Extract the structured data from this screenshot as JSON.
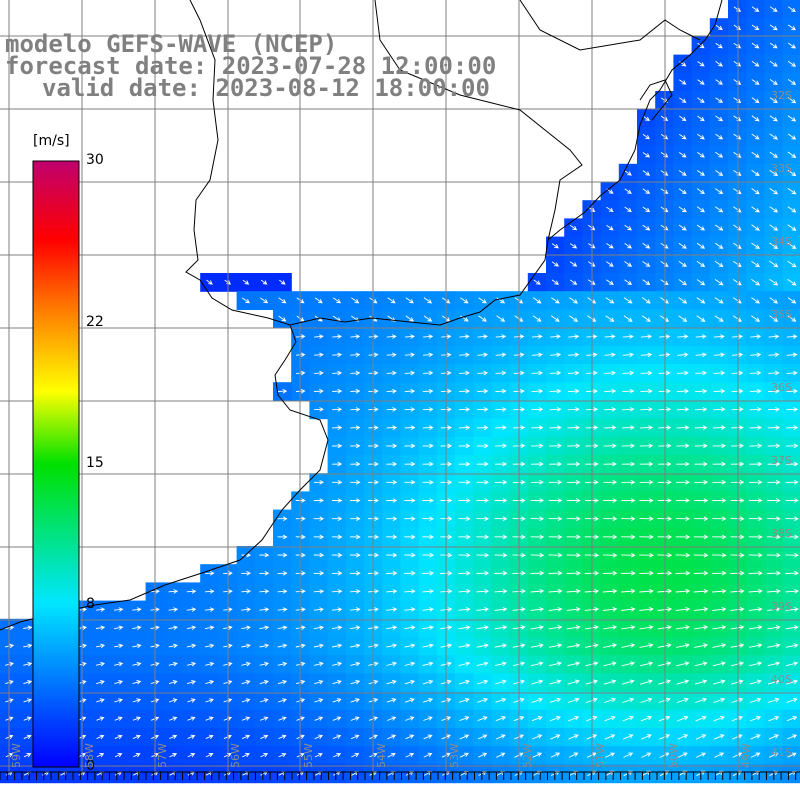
{
  "header": {
    "model_line": "modelo GEFS-WAVE (NCEP)",
    "forecast_line": "forecast date: 2023-07-28 12:00:00",
    "valid_line": "valid date: 2023-08-12 18:00:00"
  },
  "colorbar": {
    "unit": "[m/s]",
    "min": 0,
    "max": 30,
    "ticks": [
      {
        "value": 30,
        "label": "30"
      },
      {
        "value": 22,
        "label": "22"
      },
      {
        "value": 15,
        "label": "15"
      },
      {
        "value": 8,
        "label": "8"
      },
      {
        "value": 0,
        "label": "0"
      }
    ],
    "stops": [
      "#0000ff",
      "#00c8ff",
      "#00ffe0",
      "#00ff30",
      "#ffff00",
      "#ff8000",
      "#ff0000",
      "#c0006e"
    ]
  },
  "map": {
    "field": "wind speed and direction",
    "land_color": "#ffffff",
    "coastline_color": "#000000",
    "grid_color": "#7f7f7f",
    "arrow_color": "#ffffff",
    "lat_labels": [
      "32S",
      "33S",
      "34S",
      "35S",
      "36S",
      "37S",
      "38S",
      "39S",
      "40S",
      "41S"
    ],
    "lon_labels": [
      "59W",
      "58W",
      "57W",
      "56W",
      "55W",
      "54W",
      "53W",
      "52W",
      "51W",
      "50W",
      "49W"
    ],
    "speed_regions": [
      {
        "area": "northeast coast",
        "speed_ms": 2
      },
      {
        "area": "Rio de la Plata",
        "speed_ms": 3
      },
      {
        "area": "open ocean east",
        "speed_ms": 12
      },
      {
        "area": "southwest coast",
        "speed_ms": 6
      }
    ]
  }
}
